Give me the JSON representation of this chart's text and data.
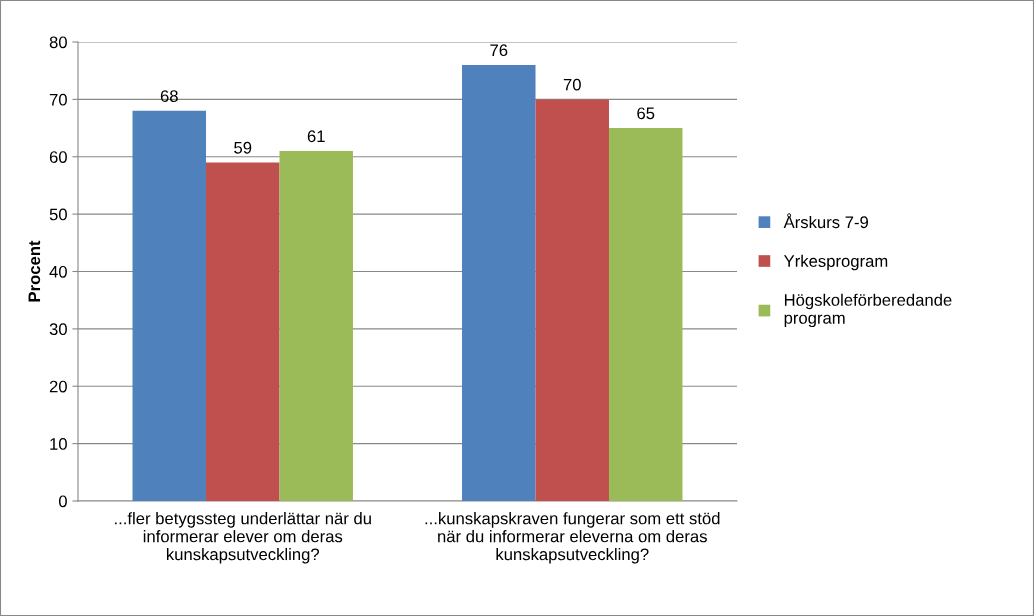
{
  "chart_data": {
    "type": "bar",
    "ylabel": "Procent",
    "categories": [
      "...fler betygssteg underlättar när du\ninformerar elever om deras\nkunskapsutveckling?",
      "...kunskapskraven fungerar som ett stöd\nnär du informerar eleverna om deras\nkunskapsutveckling?"
    ],
    "series": [
      {
        "name": "Årskurs 7-9",
        "color": "#4f81bd",
        "values": [
          68,
          76
        ]
      },
      {
        "name": "Yrkesprogram",
        "color": "#c0504d",
        "values": [
          59,
          70
        ]
      },
      {
        "name": "Högskoleförberedande\nprogram",
        "color": "#9bbb59",
        "values": [
          61,
          65
        ]
      }
    ],
    "ylim": [
      0,
      80
    ],
    "yticks": [
      0,
      10,
      20,
      30,
      40,
      50,
      60,
      70,
      80
    ],
    "grid": "y",
    "legend": "right",
    "data_labels": true
  }
}
